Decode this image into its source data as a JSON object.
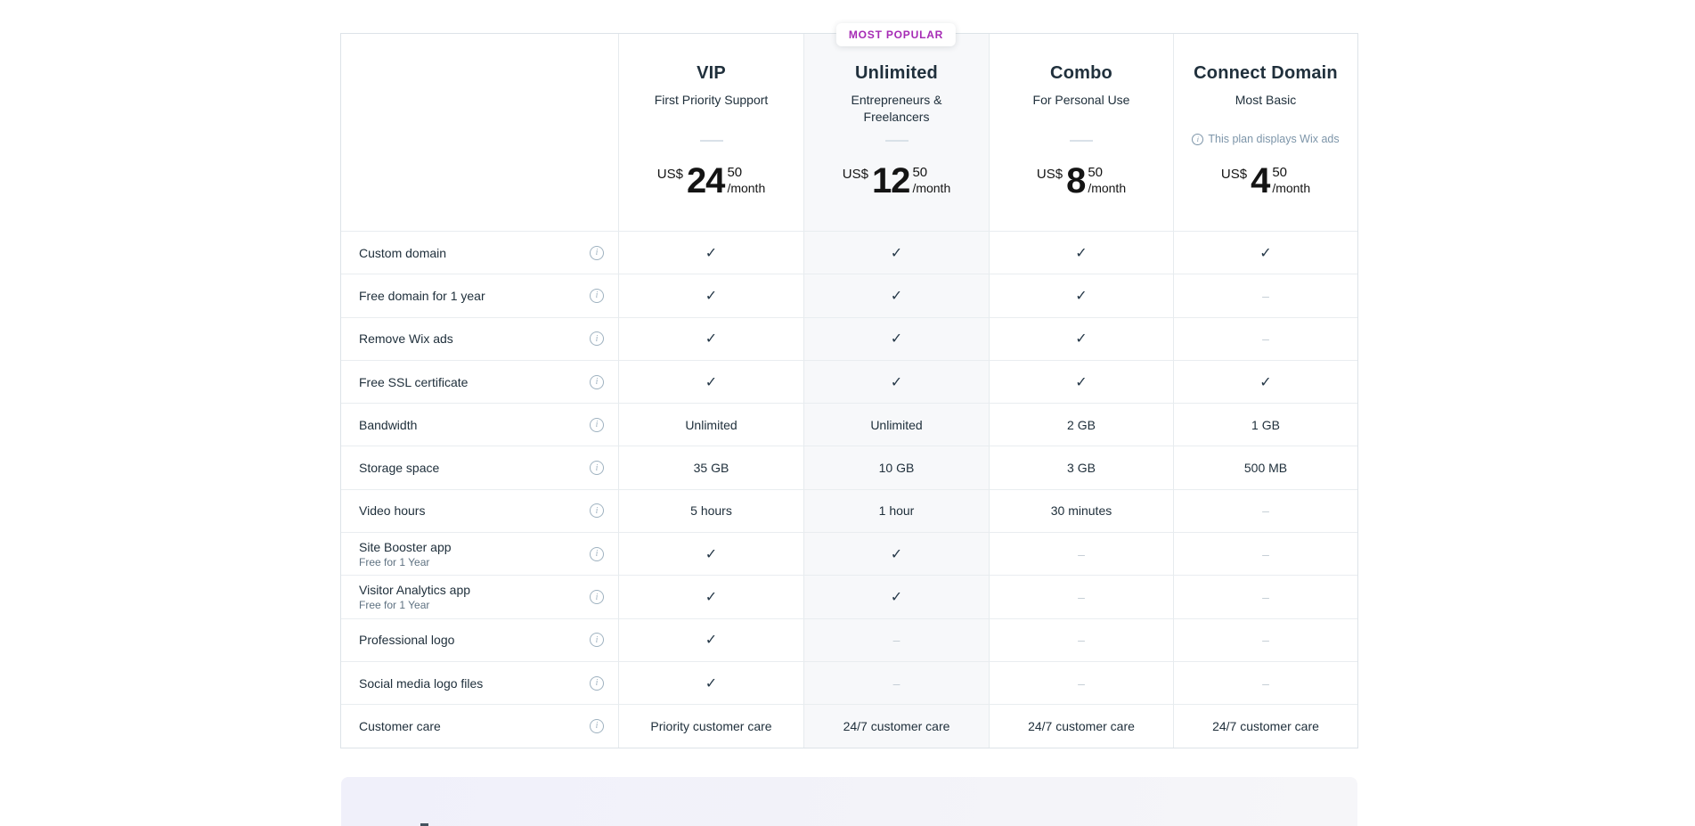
{
  "badge": {
    "label": "MOST POPULAR",
    "color": "#a62bb5"
  },
  "currency": "US$",
  "per_label": "/month",
  "plans": [
    {
      "name": "VIP",
      "subtitle": "First Priority Support",
      "price_int": "24",
      "price_cents": "50",
      "highlight": false,
      "note": ""
    },
    {
      "name": "Unlimited",
      "subtitle": "Entrepreneurs & Freelancers",
      "price_int": "12",
      "price_cents": "50",
      "highlight": true,
      "note": ""
    },
    {
      "name": "Combo",
      "subtitle": "For Personal Use",
      "price_int": "8",
      "price_cents": "50",
      "highlight": false,
      "note": ""
    },
    {
      "name": "Connect Domain",
      "subtitle": "Most Basic",
      "price_int": "4",
      "price_cents": "50",
      "highlight": false,
      "note": "This plan displays Wix ads"
    }
  ],
  "features": [
    {
      "label": "Custom domain",
      "sublabel": "",
      "values": [
        "✓",
        "✓",
        "✓",
        "✓"
      ]
    },
    {
      "label": "Free domain for 1 year",
      "sublabel": "",
      "values": [
        "✓",
        "✓",
        "✓",
        "–"
      ]
    },
    {
      "label": "Remove Wix ads",
      "sublabel": "",
      "values": [
        "✓",
        "✓",
        "✓",
        "–"
      ]
    },
    {
      "label": "Free SSL certificate",
      "sublabel": "",
      "values": [
        "✓",
        "✓",
        "✓",
        "✓"
      ]
    },
    {
      "label": "Bandwidth",
      "sublabel": "",
      "values": [
        "Unlimited",
        "Unlimited",
        "2 GB",
        "1 GB"
      ]
    },
    {
      "label": "Storage space",
      "sublabel": "",
      "values": [
        "35 GB",
        "10 GB",
        "3 GB",
        "500 MB"
      ]
    },
    {
      "label": "Video hours",
      "sublabel": "",
      "values": [
        "5 hours",
        "1 hour",
        "30 minutes",
        "–"
      ]
    },
    {
      "label": "Site Booster app",
      "sublabel": "Free for 1 Year",
      "values": [
        "✓",
        "✓",
        "–",
        "–"
      ]
    },
    {
      "label": "Visitor Analytics app",
      "sublabel": "Free for 1 Year",
      "values": [
        "✓",
        "✓",
        "–",
        "–"
      ]
    },
    {
      "label": "Professional logo",
      "sublabel": "",
      "values": [
        "✓",
        "–",
        "–",
        "–"
      ]
    },
    {
      "label": "Social media logo files",
      "sublabel": "",
      "values": [
        "✓",
        "–",
        "–",
        "–"
      ]
    },
    {
      "label": "Customer care",
      "sublabel": "",
      "values": [
        "Priority customer care",
        "24/7 customer care",
        "24/7 customer care",
        "24/7 customer care"
      ]
    }
  ]
}
